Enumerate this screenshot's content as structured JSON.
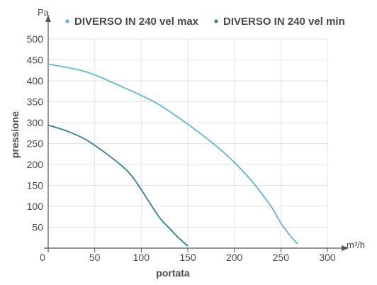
{
  "chart_data": {
    "type": "line",
    "xlabel": "portata",
    "ylabel": "pressione",
    "x_unit": "m³/h",
    "y_unit": "Pa",
    "xlim": [
      0,
      300
    ],
    "ylim": [
      0,
      500
    ],
    "x_ticks": [
      0,
      50,
      100,
      150,
      200,
      250,
      300
    ],
    "y_ticks": [
      50,
      100,
      150,
      200,
      250,
      300,
      350,
      400,
      450,
      500
    ],
    "grid": true,
    "legend_position": "top",
    "series": [
      {
        "name": "DIVERSO IN 240 vel max",
        "color": "#5bb8d4",
        "x": [
          0,
          20,
          40,
          60,
          80,
          100,
          120,
          140,
          160,
          180,
          200,
          220,
          240,
          250,
          260,
          268
        ],
        "y": [
          440,
          432,
          422,
          405,
          385,
          365,
          342,
          312,
          280,
          245,
          205,
          157,
          98,
          60,
          30,
          10
        ]
      },
      {
        "name": "DIVERSO IN 240 vel min",
        "color": "#2f7f99",
        "x": [
          0,
          20,
          40,
          60,
          80,
          90,
          100,
          110,
          120,
          130,
          140,
          150
        ],
        "y": [
          294,
          280,
          260,
          230,
          195,
          172,
          140,
          105,
          72,
          48,
          25,
          5
        ]
      }
    ]
  }
}
